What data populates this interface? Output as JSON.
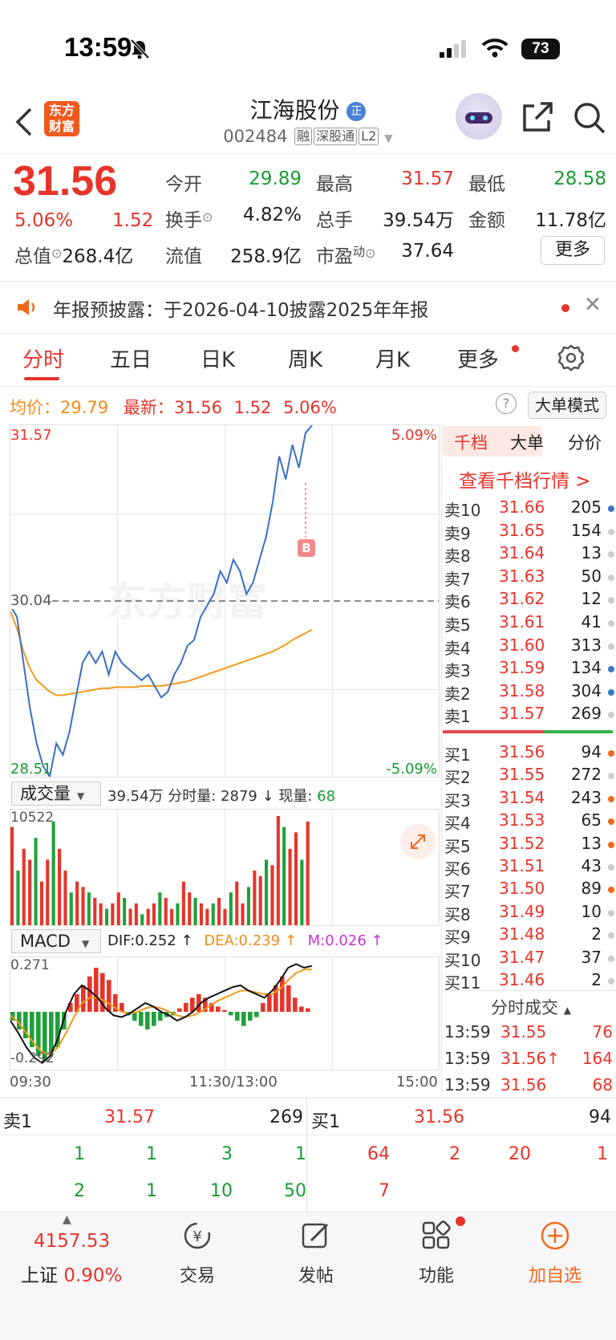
{
  "status": {
    "time": "13:59",
    "battery": "73"
  },
  "header": {
    "logo_line1": "东方",
    "logo_line2": "财富",
    "title": "江海股份",
    "title_badge": "正",
    "code": "002484",
    "tags": [
      "融",
      "深股通",
      "L2"
    ]
  },
  "quote": {
    "price": "31.56",
    "change_pct": "5.06%",
    "change": "1.52",
    "open_label": "今开",
    "open": "29.89",
    "high_label": "最高",
    "high": "31.57",
    "low_label": "最低",
    "low": "28.58",
    "turnover_label": "换手",
    "turnover": "4.82%",
    "volume_label": "总手",
    "volume": "39.54万",
    "amount_label": "金额",
    "amount": "11.78亿",
    "mcap_label": "总值",
    "mcap": "268.4亿",
    "float_label": "流值",
    "float": "258.9亿",
    "pe_label": "市盈",
    "pe_sup": "动",
    "pe": "37.64",
    "more_button": "更多"
  },
  "notice": {
    "text": "年报预披露：于2026-04-10披露2025年年报"
  },
  "tabs": [
    "分时",
    "五日",
    "日K",
    "周K",
    "月K",
    "更多"
  ],
  "active_tab": 0,
  "info_line": {
    "avg_label": "均价：",
    "avg": "29.79",
    "latest_label": "最新：",
    "latest": "31.56",
    "chg": "1.52",
    "pct": "5.06%",
    "mode_button": "大单模式"
  },
  "chart_data": {
    "type": "line",
    "y_top": "31.57",
    "y_mid": "30.04",
    "y_bottom": "28.51",
    "pct_top": "5.09%",
    "pct_bottom": "-5.09%",
    "ylim": [
      28.51,
      31.57
    ],
    "prev_close": 30.04,
    "price": [
      30.0,
      29.9,
      29.5,
      29.1,
      28.8,
      28.6,
      28.51,
      28.8,
      28.7,
      28.9,
      29.2,
      29.5,
      29.6,
      29.5,
      29.6,
      29.4,
      29.6,
      29.5,
      29.45,
      29.4,
      29.35,
      29.4,
      29.3,
      29.2,
      29.25,
      29.4,
      29.5,
      29.65,
      29.7,
      29.9,
      30.0,
      30.1,
      30.3,
      30.2,
      30.4,
      30.3,
      30.1,
      30.2,
      30.4,
      30.6,
      30.9,
      31.3,
      31.1,
      31.4,
      31.2,
      31.5,
      31.57
    ],
    "avg": [
      29.95,
      29.8,
      29.6,
      29.45,
      29.35,
      29.3,
      29.25,
      29.22,
      29.22,
      29.23,
      29.24,
      29.25,
      29.26,
      29.27,
      29.28,
      29.28,
      29.29,
      29.29,
      29.29,
      29.29,
      29.3,
      29.3,
      29.3,
      29.3,
      29.31,
      29.32,
      29.33,
      29.34,
      29.36,
      29.38,
      29.4,
      29.42,
      29.44,
      29.46,
      29.48,
      29.5,
      29.52,
      29.54,
      29.56,
      29.58,
      29.6,
      29.63,
      29.66,
      29.7,
      29.73,
      29.76,
      29.79
    ],
    "marker": "B",
    "watermark": "东方财富"
  },
  "volume_panel": {
    "selector": "成交量",
    "summary": "39.54万 分时量: 2879 ↓ 现量:",
    "current": "68",
    "max": "10522",
    "bars": [
      0.9,
      0.5,
      0.7,
      0.6,
      0.8,
      0.4,
      0.6,
      0.95,
      0.7,
      0.5,
      0.3,
      0.4,
      0.35,
      0.3,
      0.25,
      0.2,
      0.15,
      0.2,
      0.3,
      0.25,
      0.15,
      0.2,
      0.1,
      0.15,
      0.2,
      0.3,
      0.25,
      0.15,
      0.2,
      0.4,
      0.3,
      0.25,
      0.2,
      0.15,
      0.2,
      0.25,
      0.15,
      0.3,
      0.4,
      0.2,
      0.35,
      0.5,
      0.45,
      0.6,
      0.55,
      1.0,
      0.9,
      0.7,
      0.85,
      0.6,
      0.95
    ]
  },
  "macd_panel": {
    "selector": "MACD",
    "dif_label": "DIF:0.252 ↑",
    "dea_label": "DEA:0.239 ↑",
    "m_label": "M:0.026 ↑",
    "top": "0.271",
    "bottom": "-0.292",
    "hist": [
      -0.05,
      -0.1,
      -0.15,
      -0.2,
      -0.25,
      -0.28,
      -0.25,
      -0.2,
      -0.1,
      0.05,
      0.1,
      0.15,
      0.2,
      0.25,
      0.22,
      0.18,
      0.1,
      0.05,
      -0.02,
      -0.05,
      -0.08,
      -0.1,
      -0.08,
      -0.05,
      -0.03,
      -0.02,
      0.02,
      0.05,
      0.08,
      0.1,
      0.08,
      0.05,
      0.03,
      0.01,
      -0.02,
      -0.05,
      -0.08,
      -0.05,
      -0.03,
      0.05,
      0.1,
      0.15,
      0.2,
      0.15,
      0.08,
      0.03,
      0.02
    ],
    "dif": [
      -0.05,
      -0.12,
      -0.2,
      -0.26,
      -0.29,
      -0.25,
      -0.15,
      0.0,
      0.1,
      0.15,
      0.12,
      0.08,
      0.02,
      -0.02,
      -0.03,
      -0.01,
      0.02,
      0.05,
      0.03,
      0.0,
      -0.02,
      -0.05,
      -0.03,
      0.0,
      0.05,
      0.08,
      0.1,
      0.12,
      0.14,
      0.15,
      0.12,
      0.1,
      0.08,
      0.12,
      0.18,
      0.25,
      0.27,
      0.25,
      0.26
    ],
    "dea": [
      -0.02,
      -0.06,
      -0.12,
      -0.18,
      -0.23,
      -0.24,
      -0.2,
      -0.12,
      -0.03,
      0.05,
      0.08,
      0.08,
      0.06,
      0.03,
      0.0,
      -0.01,
      0.0,
      0.02,
      0.03,
      0.02,
      0.0,
      -0.02,
      -0.03,
      -0.02,
      0.0,
      0.03,
      0.06,
      0.08,
      0.1,
      0.12,
      0.12,
      0.11,
      0.1,
      0.1,
      0.13,
      0.18,
      0.22,
      0.24,
      0.24
    ]
  },
  "time_axis": [
    "09:30",
    "11:30/13:00",
    "15:00"
  ],
  "orderbook": {
    "tabs": [
      "千档",
      "大单",
      "分价"
    ],
    "link": "查看千档行情 >",
    "asks": [
      {
        "label": "卖10",
        "price": "31.66",
        "qty": "205",
        "dot": "#3a78c9"
      },
      {
        "label": "卖9",
        "price": "31.65",
        "qty": "154",
        "dot": "#ccc"
      },
      {
        "label": "卖8",
        "price": "31.64",
        "qty": "13",
        "dot": "#ccc"
      },
      {
        "label": "卖7",
        "price": "31.63",
        "qty": "50",
        "dot": "#ccc"
      },
      {
        "label": "卖6",
        "price": "31.62",
        "qty": "12",
        "dot": "#ccc"
      },
      {
        "label": "卖5",
        "price": "31.61",
        "qty": "41",
        "dot": "#ccc"
      },
      {
        "label": "卖4",
        "price": "31.60",
        "qty": "313",
        "dot": "#ccc"
      },
      {
        "label": "卖3",
        "price": "31.59",
        "qty": "134",
        "dot": "#3a78c9"
      },
      {
        "label": "卖2",
        "price": "31.58",
        "qty": "304",
        "dot": "#3a78c9"
      },
      {
        "label": "卖1",
        "price": "31.57",
        "qty": "269",
        "dot": "#ccc"
      }
    ],
    "bids": [
      {
        "label": "买1",
        "price": "31.56",
        "qty": "94",
        "dot": "#f06a1d"
      },
      {
        "label": "买2",
        "price": "31.55",
        "qty": "272",
        "dot": "#ccc"
      },
      {
        "label": "买3",
        "price": "31.54",
        "qty": "243",
        "dot": "#f06a1d"
      },
      {
        "label": "买4",
        "price": "31.53",
        "qty": "65",
        "dot": "#f06a1d"
      },
      {
        "label": "买5",
        "price": "31.52",
        "qty": "13",
        "dot": "#f06a1d"
      },
      {
        "label": "买6",
        "price": "31.51",
        "qty": "43",
        "dot": "#ccc"
      },
      {
        "label": "买7",
        "price": "31.50",
        "qty": "89",
        "dot": "#f06a1d"
      },
      {
        "label": "买8",
        "price": "31.49",
        "qty": "10",
        "dot": "#ccc"
      },
      {
        "label": "买9",
        "price": "31.48",
        "qty": "2",
        "dot": "#ccc"
      },
      {
        "label": "买10",
        "price": "31.47",
        "qty": "37",
        "dot": "#ccc"
      },
      {
        "label": "买11",
        "price": "31.46",
        "qty": "2",
        "dot": "#ccc"
      }
    ],
    "trades_title": "分时成交",
    "trades": [
      {
        "time": "13:59",
        "price": "31.55",
        "qty": "76"
      },
      {
        "time": "13:59",
        "price": "31.56↑",
        "qty": "164"
      },
      {
        "time": "13:59",
        "price": "31.56",
        "qty": "68"
      }
    ]
  },
  "bottom_book": {
    "sell_label": "卖1",
    "sell_price": "31.57",
    "sell_qty": "269",
    "buy_label": "买1",
    "buy_price": "31.56",
    "buy_qty": "94",
    "sell_queue_row1": [
      "1",
      "1",
      "3",
      "1"
    ],
    "sell_queue_row2": [
      "2",
      "1",
      "10",
      "50"
    ],
    "buy_queue_row1": [
      "64",
      "2",
      "20",
      "1"
    ],
    "buy_queue_row2": [
      "7"
    ]
  },
  "bottom_nav": {
    "index_value": "4157.53",
    "index_name": "上证",
    "index_pct": "0.90%",
    "items": [
      "交易",
      "发帖",
      "功能",
      "加自选"
    ]
  }
}
